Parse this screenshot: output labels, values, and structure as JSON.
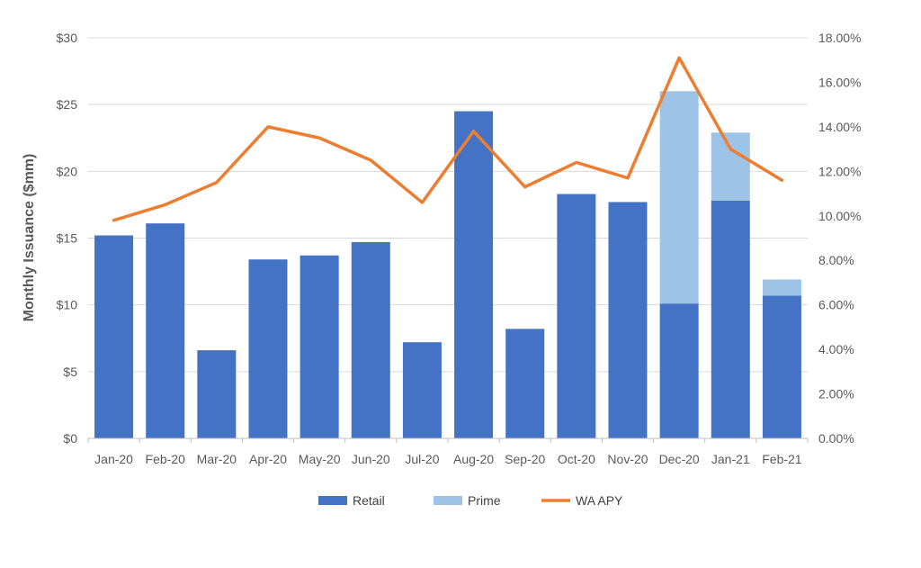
{
  "chart_data": {
    "type": "bar",
    "stacked": true,
    "title": "",
    "xlabel": "",
    "ylabel": "Monthly Issuance ($mm)",
    "y2label": "",
    "categories": [
      "Jan-20",
      "Feb-20",
      "Mar-20",
      "Apr-20",
      "May-20",
      "Jun-20",
      "Jul-20",
      "Aug-20",
      "Sep-20",
      "Oct-20",
      "Nov-20",
      "Dec-20",
      "Jan-21",
      "Feb-21"
    ],
    "series": [
      {
        "name": "Retail",
        "type": "bar",
        "axis": "left",
        "color": "#4472C4",
        "values": [
          15.2,
          16.1,
          6.6,
          13.4,
          13.7,
          14.7,
          7.2,
          24.5,
          8.2,
          18.3,
          17.7,
          10.1,
          17.8,
          10.7
        ]
      },
      {
        "name": "Prime",
        "type": "bar",
        "axis": "left",
        "color": "#9DC3E6",
        "values": [
          0,
          0,
          0,
          0,
          0,
          0,
          0,
          0,
          0,
          0,
          0,
          15.9,
          5.1,
          1.2
        ]
      },
      {
        "name": "WA APY",
        "type": "line",
        "axis": "right",
        "color": "#ED7D31",
        "values": [
          9.8,
          10.5,
          11.5,
          14.0,
          13.5,
          12.5,
          10.6,
          13.8,
          11.3,
          12.4,
          11.7,
          17.1,
          13.0,
          11.6
        ]
      }
    ],
    "ylim": [
      0,
      30
    ],
    "y2lim": [
      0,
      18
    ],
    "yticks": [
      "$0",
      "$5",
      "$10",
      "$15",
      "$20",
      "$25",
      "$30"
    ],
    "y2ticks": [
      "0.00%",
      "2.00%",
      "4.00%",
      "6.00%",
      "8.00%",
      "10.00%",
      "12.00%",
      "14.00%",
      "16.00%",
      "18.00%"
    ],
    "grid": true,
    "legend": "bottom-center"
  }
}
